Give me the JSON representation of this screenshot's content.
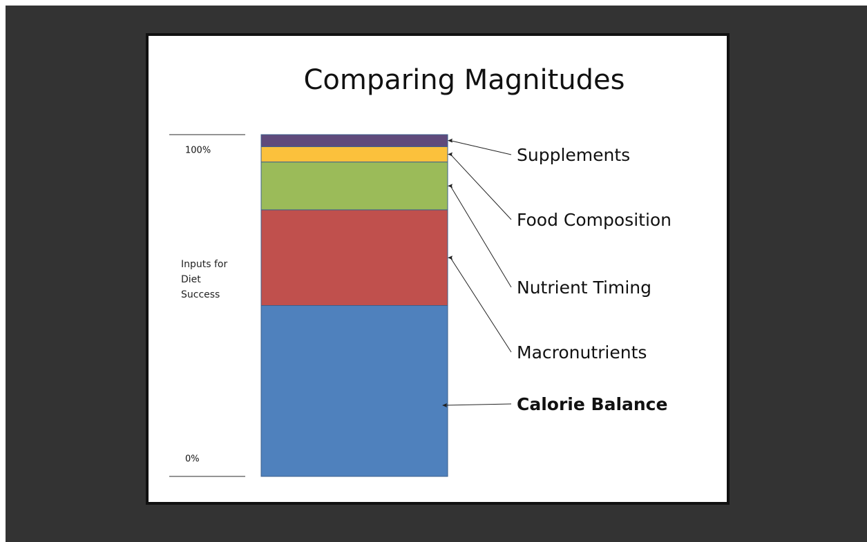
{
  "chart_data": {
    "type": "stacked_bar",
    "title": "Comparing Magnitudes",
    "ylabel": "Inputs for Diet Success",
    "categories": [
      null
    ],
    "series": [
      {
        "name": "Calorie Balance",
        "color": "#4f81bd",
        "values": [
          50
        ],
        "bold": true
      },
      {
        "name": "Macronutrients",
        "color": "#c0504d",
        "values": [
          28
        ]
      },
      {
        "name": "Nutrient Timing",
        "color": "#9bbb59",
        "values": [
          14
        ]
      },
      {
        "name": "Food Composition",
        "color": "#fbc13c",
        "values": [
          4.5
        ]
      },
      {
        "name": "Supplements",
        "color": "#604a7b",
        "values": [
          3.5
        ]
      }
    ],
    "ylim": [
      0,
      100
    ],
    "yticks": [
      {
        "value": 0,
        "label": "0%"
      },
      {
        "value": 100,
        "label": "100%"
      }
    ]
  }
}
